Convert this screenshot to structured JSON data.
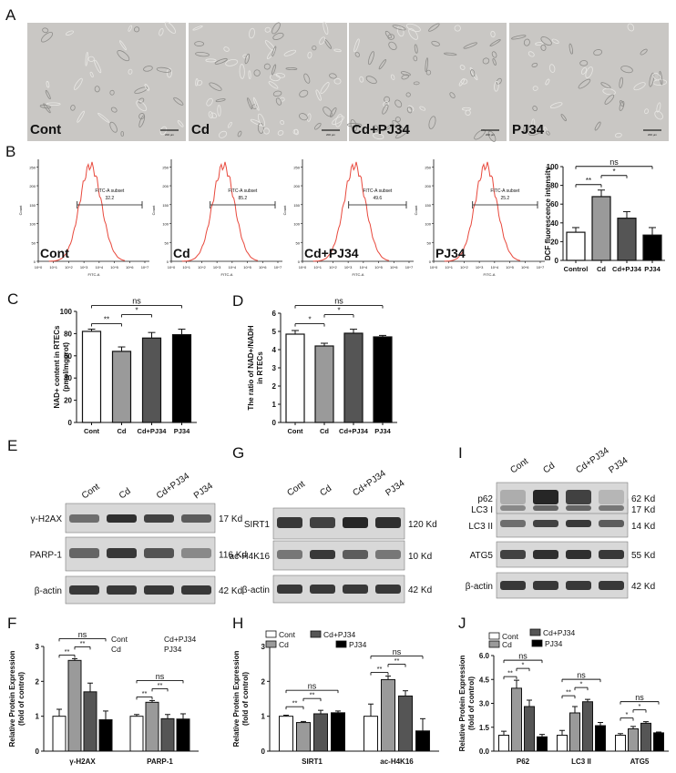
{
  "panel_letters": [
    "A",
    "B",
    "C",
    "D",
    "E",
    "F",
    "G",
    "H",
    "I",
    "J"
  ],
  "micrographs": {
    "labels": [
      "Cont",
      "Cd",
      "Cd+PJ34",
      "PJ34"
    ],
    "scale_bar": "200 μm"
  },
  "flow": {
    "ylabel": "Count",
    "xlabel": "FITC-A",
    "gate_label": "FITC-A subset",
    "y_ticks": [
      "0",
      "50",
      "100",
      "150",
      "200",
      "250"
    ],
    "x_ticks": [
      "10^0",
      "10^1",
      "10^2",
      "10^3",
      "10^4",
      "10^5",
      "10^6",
      "10^7"
    ],
    "panels": [
      {
        "label": "Cont",
        "gate_value": "32.2"
      },
      {
        "label": "Cd",
        "gate_value": "85.2"
      },
      {
        "label": "Cd+PJ34",
        "gate_value": "49.6"
      },
      {
        "label": "PJ34",
        "gate_value": "25.2"
      }
    ]
  },
  "blots": {
    "E": {
      "lanes": [
        "Cont",
        "Cd",
        "Cd+PJ34",
        "PJ34"
      ],
      "rows": [
        {
          "name": "γ-H2AX",
          "kd": "17 Kd"
        },
        {
          "name": "PARP-1",
          "kd": "116 Kd"
        },
        {
          "name": "β-actin",
          "kd": "42 Kd"
        }
      ]
    },
    "G": {
      "lanes": [
        "Cont",
        "Cd",
        "Cd+PJ34",
        "PJ34"
      ],
      "rows": [
        {
          "name": "SIRT1",
          "kd": "120 Kd"
        },
        {
          "name": "ac-H4K16",
          "kd": "10 Kd"
        },
        {
          "name": "β-actin",
          "kd": "42 Kd"
        }
      ]
    },
    "I": {
      "lanes": [
        "Cont",
        "Cd",
        "Cd+PJ34",
        "PJ34"
      ],
      "rows": [
        {
          "name": "p62",
          "kd": "62 Kd"
        },
        {
          "name": "LC3 I",
          "kd": "17 Kd"
        },
        {
          "name": "LC3 II",
          "kd": "14 Kd"
        },
        {
          "name": "ATG5",
          "kd": "55 Kd"
        },
        {
          "name": "β-actin",
          "kd": "42 Kd"
        }
      ]
    }
  },
  "chart_data": [
    {
      "id": "B",
      "type": "bar",
      "ylabel": "DCF fluorescence intensity",
      "categories": [
        "Control",
        "Cd",
        "Cd+PJ34",
        "PJ34"
      ],
      "values": [
        30,
        68,
        45,
        27
      ],
      "errors": [
        5,
        7,
        7,
        8
      ],
      "ylim": [
        0,
        100
      ],
      "yticks": [
        0,
        20,
        40,
        60,
        80,
        100
      ],
      "significance": [
        {
          "pair": [
            0,
            1
          ],
          "label": "**"
        },
        {
          "pair": [
            1,
            2
          ],
          "label": "*"
        },
        {
          "pair": [
            0,
            3
          ],
          "label": "ns"
        }
      ]
    },
    {
      "id": "C",
      "type": "bar",
      "ylabel": "NAD+ content in RTECs (pmol/mgprot)",
      "categories": [
        "Cont",
        "Cd",
        "Cd+PJ34",
        "PJ34"
      ],
      "values": [
        82,
        64,
        76,
        79
      ],
      "errors": [
        2,
        4,
        5,
        5
      ],
      "ylim": [
        0,
        100
      ],
      "yticks": [
        0,
        20,
        40,
        60,
        80,
        100
      ],
      "significance": [
        {
          "pair": [
            0,
            1
          ],
          "label": "**"
        },
        {
          "pair": [
            1,
            2
          ],
          "label": "*"
        },
        {
          "pair": [
            0,
            3
          ],
          "label": "ns"
        }
      ]
    },
    {
      "id": "D",
      "type": "bar",
      "ylabel": "The ratio of NAD+/NADH in RTECs",
      "categories": [
        "Cont",
        "Cd",
        "Cd+PJ34",
        "PJ34"
      ],
      "values": [
        4.85,
        4.2,
        4.9,
        4.7
      ],
      "errors": [
        0.2,
        0.15,
        0.22,
        0.08
      ],
      "ylim": [
        0,
        6
      ],
      "yticks": [
        0,
        1,
        2,
        3,
        4,
        5,
        6
      ],
      "significance": [
        {
          "pair": [
            0,
            1
          ],
          "label": "*"
        },
        {
          "pair": [
            1,
            2
          ],
          "label": "*"
        },
        {
          "pair": [
            0,
            3
          ],
          "label": "ns"
        }
      ]
    },
    {
      "id": "F",
      "type": "bar",
      "ylabel": "Relative Protein Expression (fold of control)",
      "categories": [
        "γ-H2AX",
        "PARP-1"
      ],
      "ylim": [
        0,
        3
      ],
      "yticks": [
        0,
        1,
        2,
        3
      ],
      "legend": [
        "Cont",
        "Cd",
        "Cd+PJ34",
        "PJ34"
      ],
      "series": [
        {
          "name": "Cont",
          "values": [
            1.0,
            1.0
          ],
          "errors": [
            0.2,
            0.05
          ]
        },
        {
          "name": "Cd",
          "values": [
            2.6,
            1.4
          ],
          "errors": [
            0.05,
            0.05
          ]
        },
        {
          "name": "Cd+PJ34",
          "values": [
            1.7,
            0.93
          ],
          "errors": [
            0.25,
            0.12
          ]
        },
        {
          "name": "PJ34",
          "values": [
            0.9,
            0.92
          ],
          "errors": [
            0.25,
            0.15
          ]
        }
      ],
      "significance": [
        {
          "cat": 0,
          "pair": [
            0,
            1
          ],
          "label": "**"
        },
        {
          "cat": 0,
          "pair": [
            1,
            2
          ],
          "label": "**"
        },
        {
          "cat": 0,
          "pair": [
            0,
            3
          ],
          "label": "ns"
        },
        {
          "cat": 1,
          "pair": [
            0,
            1
          ],
          "label": "**"
        },
        {
          "cat": 1,
          "pair": [
            1,
            2
          ],
          "label": "**"
        },
        {
          "cat": 1,
          "pair": [
            0,
            3
          ],
          "label": "ns"
        }
      ]
    },
    {
      "id": "H",
      "type": "bar",
      "ylabel": "Relative Protein Expression (fold of control)",
      "categories": [
        "SIRT1",
        "ac-H4K16"
      ],
      "ylim": [
        0,
        3
      ],
      "yticks": [
        0,
        1,
        2,
        3
      ],
      "legend": [
        "Cont",
        "Cd",
        "Cd+PJ34",
        "PJ34"
      ],
      "series": [
        {
          "name": "Cont",
          "values": [
            1.0,
            1.0
          ],
          "errors": [
            0.03,
            0.35
          ]
        },
        {
          "name": "Cd",
          "values": [
            0.82,
            2.05
          ],
          "errors": [
            0.03,
            0.1
          ]
        },
        {
          "name": "Cd+PJ34",
          "values": [
            1.07,
            1.58
          ],
          "errors": [
            0.1,
            0.15
          ]
        },
        {
          "name": "PJ34",
          "values": [
            1.1,
            0.58
          ],
          "errors": [
            0.05,
            0.35
          ]
        }
      ],
      "significance": [
        {
          "cat": 0,
          "pair": [
            0,
            1
          ],
          "label": "**"
        },
        {
          "cat": 0,
          "pair": [
            1,
            2
          ],
          "label": "**"
        },
        {
          "cat": 0,
          "pair": [
            0,
            3
          ],
          "label": "ns"
        },
        {
          "cat": 1,
          "pair": [
            0,
            1
          ],
          "label": "**"
        },
        {
          "cat": 1,
          "pair": [
            1,
            2
          ],
          "label": "**"
        },
        {
          "cat": 1,
          "pair": [
            0,
            3
          ],
          "label": "ns"
        }
      ]
    },
    {
      "id": "J",
      "type": "bar",
      "ylabel": "Relative Protein Expression (fold of control)",
      "categories": [
        "P62",
        "LC3 II",
        "ATG5"
      ],
      "ylim": [
        0,
        6.0
      ],
      "yticks": [
        0.0,
        1.5,
        3.0,
        4.5,
        6.0
      ],
      "legend": [
        "Cont",
        "Cd",
        "Cd+PJ34",
        "PJ34"
      ],
      "series": [
        {
          "name": "Cont",
          "values": [
            1.0,
            1.0,
            1.0
          ],
          "errors": [
            0.25,
            0.3,
            0.1
          ]
        },
        {
          "name": "Cd",
          "values": [
            3.95,
            2.4,
            1.4
          ],
          "errors": [
            0.5,
            0.4,
            0.15
          ]
        },
        {
          "name": "Cd+PJ34",
          "values": [
            2.8,
            3.1,
            1.75
          ],
          "errors": [
            0.4,
            0.15,
            0.1
          ]
        },
        {
          "name": "PJ34",
          "values": [
            0.9,
            1.6,
            1.15
          ],
          "errors": [
            0.15,
            0.2,
            0.05
          ]
        }
      ],
      "significance": [
        {
          "cat": 0,
          "pair": [
            0,
            1
          ],
          "label": "**"
        },
        {
          "cat": 0,
          "pair": [
            1,
            2
          ],
          "label": "*"
        },
        {
          "cat": 0,
          "pair": [
            0,
            3
          ],
          "label": "ns"
        },
        {
          "cat": 1,
          "pair": [
            0,
            1
          ],
          "label": "**"
        },
        {
          "cat": 1,
          "pair": [
            1,
            2
          ],
          "label": "*"
        },
        {
          "cat": 1,
          "pair": [
            0,
            3
          ],
          "label": "ns"
        },
        {
          "cat": 2,
          "pair": [
            0,
            1
          ],
          "label": "*"
        },
        {
          "cat": 2,
          "pair": [
            1,
            2
          ],
          "label": "*"
        },
        {
          "cat": 2,
          "pair": [
            0,
            3
          ],
          "label": "ns"
        }
      ]
    }
  ],
  "colors": {
    "Cont": "#ffffff",
    "Cd": "#9a9a9a",
    "Cd+PJ34": "#555555",
    "PJ34": "#000000",
    "histogram": "#e8483c"
  }
}
